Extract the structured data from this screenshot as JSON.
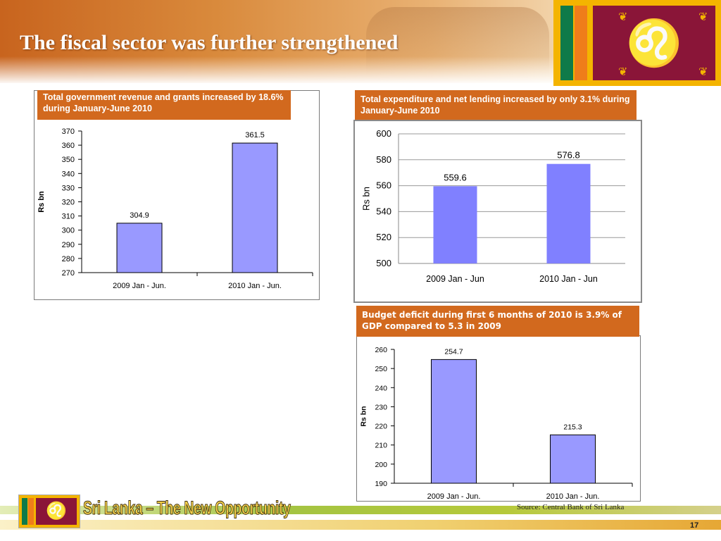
{
  "slide": {
    "title": "The fiscal sector was further strengthened",
    "tagline": "Sri Lanka – The New Opportunity",
    "source": "Source: Central Bank of Sri Lanka",
    "page_number": "17"
  },
  "panels": {
    "revenue_header": "Total government revenue and grants increased by 18.6% during January-June 2010",
    "expenditure_header": "Total expenditure and net lending increased by only 3.1% during January-June 2010",
    "deficit_header": "Budget deficit during first 6 months of 2010 is 3.9% of GDP compared to 5.3 in 2009"
  },
  "colors": {
    "accent": "#d2691e",
    "bar": "#9999ff",
    "flag_gold": "#f4b400",
    "flag_maroon": "#8a1538"
  },
  "chart_data": [
    {
      "type": "bar",
      "categories": [
        "2009 Jan - Jun.",
        "2010 Jan - Jun."
      ],
      "values": [
        304.9,
        361.5
      ],
      "value_labels": [
        "304.9",
        "361.5"
      ],
      "ylabel": "Rs bn",
      "ylim": [
        270,
        370
      ],
      "yticks": [
        270,
        280,
        290,
        300,
        310,
        320,
        330,
        340,
        350,
        360,
        370
      ],
      "ytick_labels": [
        "270",
        "280",
        "290",
        "300",
        "310",
        "320",
        "330",
        "340",
        "350",
        "360",
        "370"
      ],
      "grid": false
    },
    {
      "type": "bar",
      "categories": [
        "2009 Jan - Jun",
        "2010 Jan - Jun"
      ],
      "values": [
        559.6,
        576.8
      ],
      "value_labels": [
        "559.6",
        "576.8"
      ],
      "ylabel": "Rs bn",
      "ylim": [
        500,
        600
      ],
      "yticks": [
        500,
        520,
        540,
        560,
        580,
        600
      ],
      "ytick_labels": [
        "500",
        "520",
        "540",
        "560",
        "580",
        "600"
      ],
      "grid": true
    },
    {
      "type": "bar",
      "categories": [
        "2009 Jan - Jun.",
        "2010 Jan - Jun."
      ],
      "values": [
        254.7,
        215.3
      ],
      "value_labels": [
        "254.7",
        "215.3"
      ],
      "ylabel": "Rs bn",
      "ylim": [
        190,
        260
      ],
      "yticks": [
        190,
        200,
        210,
        220,
        230,
        240,
        250,
        260
      ],
      "ytick_labels": [
        "190",
        "200",
        "210",
        "220",
        "230",
        "240",
        "250",
        "260"
      ],
      "grid": false
    }
  ]
}
